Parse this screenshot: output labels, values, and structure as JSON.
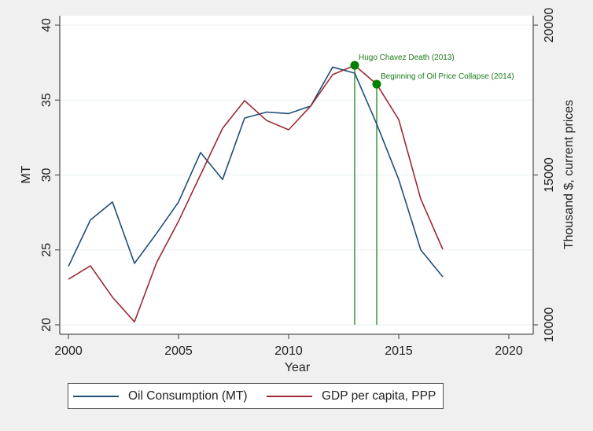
{
  "chart_data": {
    "type": "line",
    "title": "",
    "xlabel": "Year",
    "ylabel_left": "MT",
    "ylabel_right": "Thousand $, current prices",
    "xlim": [
      2000,
      2020
    ],
    "ylim_left": [
      20,
      40
    ],
    "ylim_right": [
      10000,
      20000
    ],
    "x_ticks": [
      "2000",
      "2005",
      "2010",
      "2015",
      "2020"
    ],
    "y_left_ticks": [
      "20",
      "25",
      "30",
      "35",
      "40"
    ],
    "y_right_ticks": [
      "10000",
      "15000",
      "20000"
    ],
    "grid": true,
    "legend_position": "bottom",
    "x": [
      2000,
      2001,
      2002,
      2003,
      2004,
      2005,
      2006,
      2007,
      2008,
      2009,
      2010,
      2011,
      2012,
      2013,
      2014,
      2015,
      2016,
      2017
    ],
    "series": [
      {
        "name": "Oil Consumption (MT)",
        "axis": "left",
        "color": "#1f4e79",
        "values": [
          23.9,
          27.0,
          28.2,
          24.1,
          26.1,
          28.2,
          31.5,
          29.7,
          33.8,
          34.2,
          34.1,
          34.6,
          37.2,
          36.8,
          33.4,
          29.7,
          25.0,
          23.2
        ]
      },
      {
        "name": "GDP per capita, PPP",
        "axis": "right",
        "color": "#9c2a35",
        "values": [
          11520,
          11970,
          10920,
          10100,
          12070,
          13460,
          15010,
          16560,
          17480,
          16820,
          16510,
          17300,
          18350,
          18660,
          18030,
          16850,
          14200,
          12520
        ]
      }
    ],
    "annotations": [
      {
        "label": "Hugo Chavez Death (2013)",
        "x": 2013,
        "y_right": 18660,
        "color": "#008000"
      },
      {
        "label": "Beginning of Oil Price Collapse (2014)",
        "x": 2014,
        "y_right": 18030,
        "color": "#008000"
      }
    ]
  }
}
